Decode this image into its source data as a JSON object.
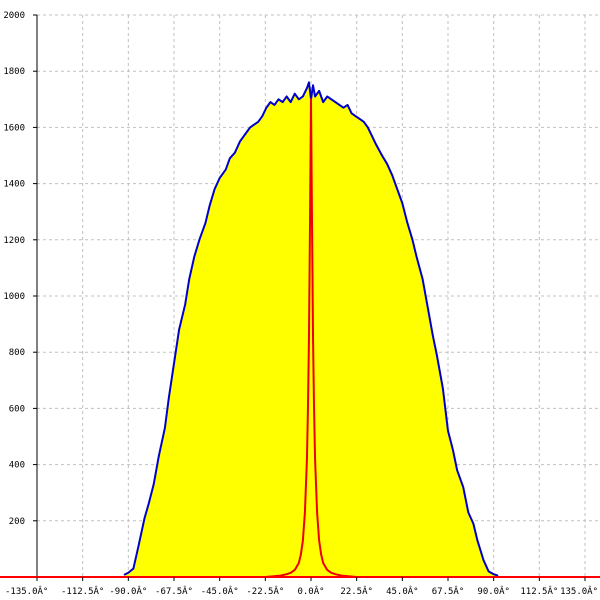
{
  "chart_data": {
    "type": "area",
    "xlim": [
      -135,
      135
    ],
    "ylim": [
      0,
      2000
    ],
    "x_ticks": [
      -135,
      -112.5,
      -90,
      -67.5,
      -45,
      -22.5,
      0,
      22.5,
      45,
      67.5,
      90,
      112.5,
      135
    ],
    "x_tick_labels": [
      "-135.0Â°",
      "-112.5Â°",
      "-90.0Â°",
      "-67.5Â°",
      "-45.0Â°",
      "-22.5Â°",
      "0.0Â°",
      "22.5Â°",
      "45.0Â°",
      "67.5Â°",
      "90.0Â°",
      "112.5Â°",
      "135.0Â°"
    ],
    "y_ticks": [
      200,
      400,
      600,
      800,
      1000,
      1200,
      1400,
      1600,
      1800,
      2000
    ],
    "y_tick_labels": [
      "200",
      "400",
      "600",
      "800",
      "1000",
      "1200",
      "1400",
      "1600",
      "1800",
      "2000"
    ],
    "grid": true,
    "colors": {
      "grid": "#c0c0c0",
      "axis": "#000000",
      "baseline": "#ff0000",
      "fill": "#ffff00",
      "wide_line": "#0000cc",
      "narrow_line": "#ee0000"
    },
    "series": [
      {
        "style": "filled-area",
        "x": [
          -92,
          -90,
          -87.5,
          -85,
          -82,
          -80,
          -77.5,
          -75,
          -72,
          -70,
          -67.5,
          -65,
          -62,
          -60,
          -57.5,
          -55,
          -52,
          -50,
          -47.5,
          -45,
          -42,
          -40,
          -37.5,
          -35,
          -32,
          -30,
          -28,
          -26,
          -24,
          -22,
          -20,
          -18,
          -16,
          -14,
          -12,
          -10,
          -8,
          -6,
          -4,
          -2,
          -1,
          0,
          1,
          2,
          4,
          6,
          8,
          10,
          12,
          14,
          16,
          18,
          20,
          22,
          24,
          26,
          28,
          30,
          32,
          35,
          37.5,
          40,
          42,
          45,
          47.5,
          50,
          52,
          55,
          57.5,
          60,
          62,
          65,
          67.5,
          70,
          72,
          75,
          77.5,
          80,
          82,
          85,
          87.5,
          90,
          92
        ],
        "values": [
          8,
          15,
          30,
          110,
          210,
          260,
          330,
          430,
          530,
          640,
          760,
          880,
          970,
          1060,
          1140,
          1200,
          1260,
          1320,
          1380,
          1420,
          1450,
          1490,
          1510,
          1550,
          1580,
          1600,
          1610,
          1620,
          1640,
          1670,
          1690,
          1680,
          1700,
          1690,
          1710,
          1690,
          1720,
          1700,
          1710,
          1740,
          1760,
          1700,
          1750,
          1710,
          1730,
          1690,
          1710,
          1700,
          1690,
          1680,
          1670,
          1680,
          1650,
          1640,
          1630,
          1620,
          1600,
          1570,
          1540,
          1500,
          1470,
          1430,
          1390,
          1330,
          1260,
          1200,
          1140,
          1060,
          960,
          860,
          790,
          670,
          520,
          450,
          380,
          320,
          230,
          190,
          130,
          60,
          20,
          10,
          5
        ]
      },
      {
        "style": "line",
        "x": [
          -22.5,
          -15,
          -12,
          -10,
          -8,
          -6,
          -5,
          -4,
          -3,
          -2,
          -1.5,
          -1,
          -0.5,
          0,
          0.5,
          1,
          1.5,
          2,
          3,
          4,
          5,
          6,
          8,
          10,
          12,
          15,
          22.5
        ],
        "values": [
          0,
          5,
          10,
          15,
          25,
          50,
          80,
          130,
          230,
          420,
          600,
          850,
          1250,
          1700,
          1260,
          850,
          600,
          420,
          230,
          130,
          80,
          50,
          25,
          15,
          10,
          5,
          0
        ]
      }
    ]
  }
}
